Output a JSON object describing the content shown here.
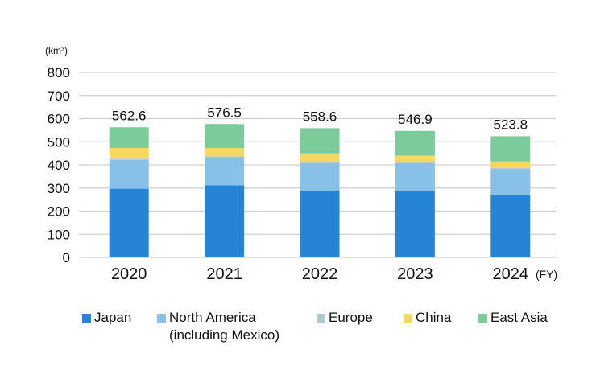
{
  "chart_data": {
    "type": "bar",
    "stacked": true,
    "unit_label": "(km³)",
    "categories": [
      "2020",
      "2021",
      "2022",
      "2023",
      "2024"
    ],
    "x_suffix": "(FY)",
    "ylim": [
      0,
      800
    ],
    "yticks": [
      0,
      100,
      200,
      300,
      400,
      500,
      600,
      700,
      800
    ],
    "grid": true,
    "legend_position": "bottom",
    "totals": [
      "562.6",
      "576.5",
      "558.6",
      "546.9",
      "523.8"
    ],
    "series": [
      {
        "name": "Japan",
        "color": "#2684d6",
        "values": [
          297,
          312,
          288,
          286,
          269
        ]
      },
      {
        "name": "North America",
        "name_line2": "(including Mexico)",
        "color": "#88c1e8",
        "values": [
          125,
          121,
          119,
          121,
          112
        ]
      },
      {
        "name": "Europe",
        "color": "#b3c9cb",
        "values": [
          5,
          4,
          8,
          3,
          6
        ]
      },
      {
        "name": "China",
        "color": "#f4d862",
        "values": [
          46,
          36,
          35,
          30,
          28
        ]
      },
      {
        "name": "East Asia",
        "color": "#7ccb9a",
        "values": [
          89.6,
          103.5,
          108.6,
          106.9,
          108.8
        ]
      }
    ]
  }
}
